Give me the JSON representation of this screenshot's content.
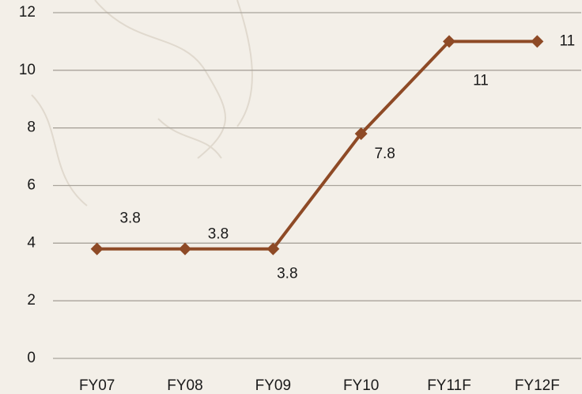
{
  "chart_data": {
    "type": "line",
    "categories": [
      "FY07",
      "FY08",
      "FY09",
      "FY10",
      "FY11F",
      "FY12F"
    ],
    "series": [
      {
        "color": "#8e4a26",
        "values": [
          3.8,
          3.8,
          3.8,
          7.8,
          11,
          11
        ]
      }
    ],
    "ylim": [
      0,
      12
    ],
    "yticks": [
      0,
      2,
      4,
      6,
      8,
      10,
      12
    ],
    "grid": true
  }
}
